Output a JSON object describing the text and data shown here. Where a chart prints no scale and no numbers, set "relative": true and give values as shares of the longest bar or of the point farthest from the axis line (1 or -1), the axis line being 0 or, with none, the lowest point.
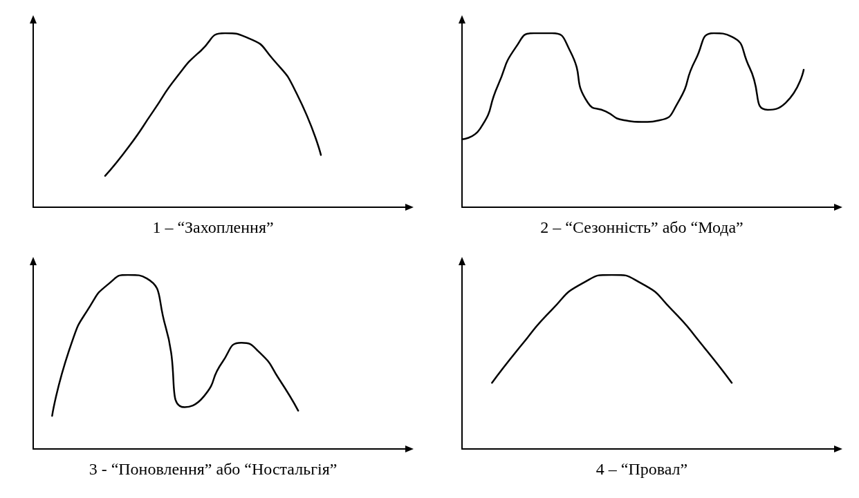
{
  "chart_data": [
    {
      "type": "line",
      "title": "1 – “Захоплення”",
      "relative": true,
      "tick_labels": false,
      "color": "#000000",
      "marker": "none",
      "line_style": "solid",
      "categories": [
        null,
        null,
        null,
        null,
        null,
        null,
        null,
        null,
        null,
        null,
        null,
        null,
        null,
        null,
        null,
        null
      ],
      "values": [
        null,
        null,
        null,
        0.18,
        0.35,
        0.55,
        0.75,
        0.9,
        1,
        0.97,
        0.85,
        0.65,
        0.3,
        null,
        null,
        null
      ]
    },
    {
      "type": "line",
      "title": "2 – “Сезонність” або “Мода”",
      "relative": true,
      "tick_labels": false,
      "color": "#000000",
      "marker": "none",
      "line_style": "solid",
      "categories": [
        null,
        null,
        null,
        null,
        null,
        null,
        null,
        null,
        null,
        null,
        null,
        null,
        null,
        null,
        null,
        null,
        null,
        null,
        null,
        null,
        null
      ],
      "values": [
        0.39,
        0.45,
        0.7,
        0.92,
        1,
        1,
        0.9,
        0.6,
        0.55,
        0.5,
        0.49,
        0.5,
        0.6,
        0.85,
        1,
        0.98,
        0.8,
        0.56,
        0.6,
        0.79,
        null
      ]
    },
    {
      "type": "line",
      "title": "3 - “Поновлення” або “Ностальгія”",
      "relative": true,
      "tick_labels": false,
      "color": "#000000",
      "marker": "none",
      "line_style": "solid",
      "categories": [
        null,
        null,
        null,
        null,
        null,
        null,
        null,
        null,
        null,
        null,
        null,
        null,
        null,
        null,
        null,
        null,
        null,
        null,
        null,
        null
      ],
      "values": [
        null,
        0.19,
        0.6,
        0.82,
        0.95,
        1,
        0.98,
        0.7,
        0.24,
        0.3,
        0.5,
        0.61,
        0.55,
        0.4,
        0.22,
        null,
        null,
        null,
        null,
        null
      ]
    },
    {
      "type": "line",
      "title": "4 – “Провал”",
      "relative": true,
      "tick_labels": false,
      "color": "#000000",
      "marker": "none",
      "line_style": "solid",
      "categories": [
        null,
        null,
        null,
        null,
        null,
        null,
        null,
        null,
        null,
        null,
        null,
        null,
        null
      ],
      "values": [
        null,
        0.38,
        0.6,
        0.8,
        0.95,
        1,
        0.95,
        0.8,
        0.6,
        0.38,
        null,
        null,
        null
      ]
    }
  ]
}
